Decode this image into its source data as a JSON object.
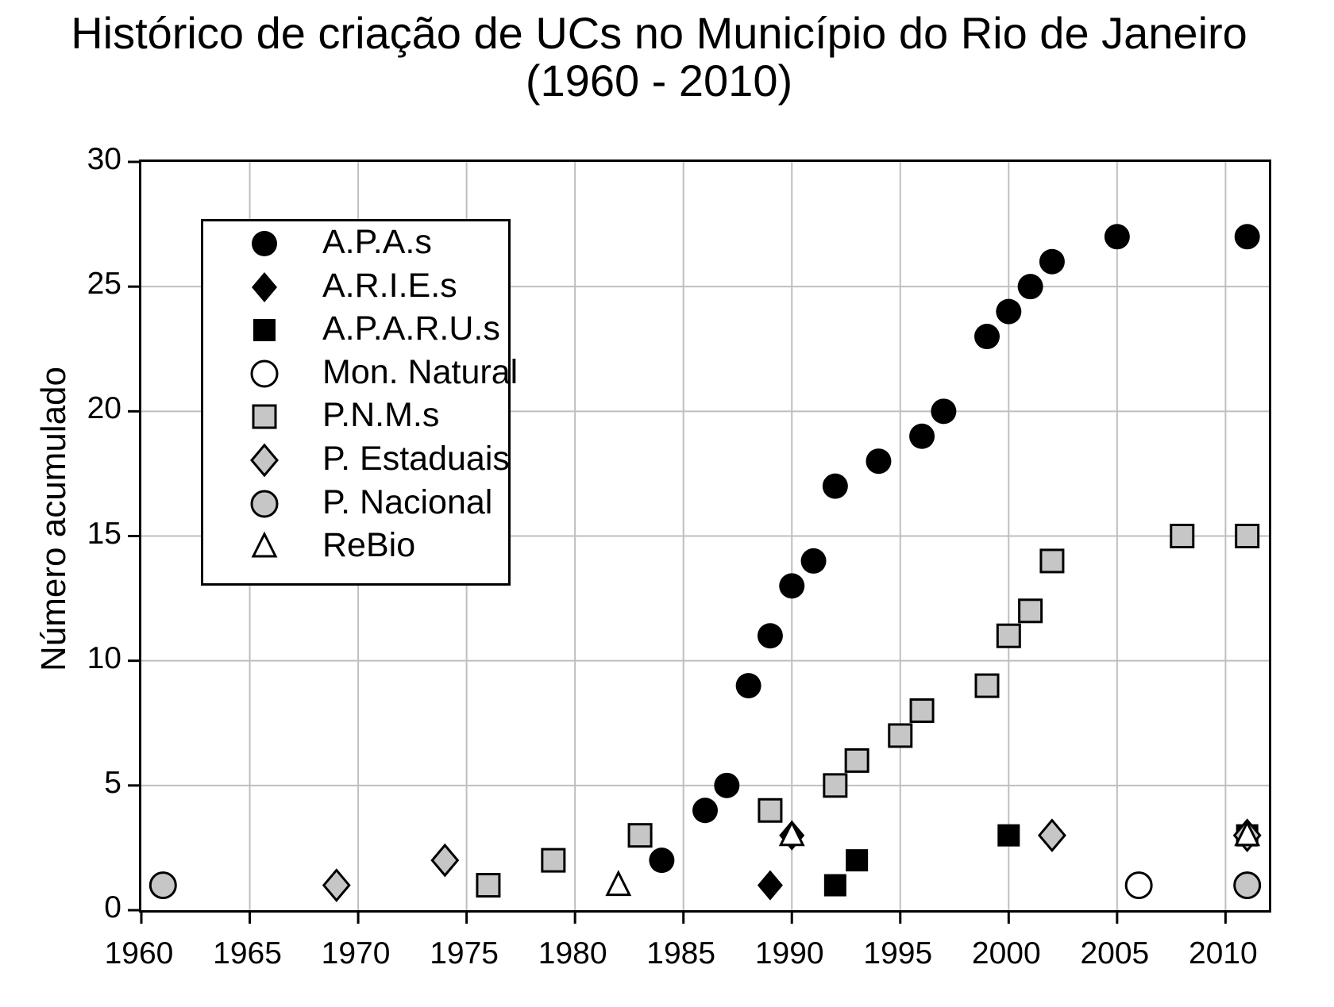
{
  "title": {
    "line1": "Histórico de criação de UCs no Município do Rio de Janeiro",
    "line2": "(1960 - 2010)"
  },
  "colors": {
    "black": "#000000",
    "gray_fill": "#c6c6c6",
    "white": "#ffffff",
    "gridline": "#bfbfbf",
    "frame": "#000000",
    "background": "#ffffff"
  },
  "chart_data": {
    "type": "scatter",
    "title": "Histórico de criação de UCs no Município do Rio de Janeiro",
    "subtitle": "(1960 - 2010)",
    "xlabel": "",
    "ylabel": "Número acumulado",
    "xlim": [
      1960,
      2012
    ],
    "ylim": [
      0,
      30
    ],
    "x_ticks": [
      1960,
      1965,
      1970,
      1975,
      1980,
      1985,
      1990,
      1995,
      2000,
      2005,
      2010
    ],
    "y_ticks": [
      0,
      5,
      10,
      15,
      20,
      25,
      30
    ],
    "grid": true,
    "legend_position": "upper-left-inside",
    "series": [
      {
        "name": "A.P.A.s",
        "marker": {
          "shape": "circle",
          "fill": "#000000",
          "stroke": "none"
        },
        "points": [
          [
            1984,
            2
          ],
          [
            1986,
            4
          ],
          [
            1987,
            5
          ],
          [
            1988,
            9
          ],
          [
            1989,
            11
          ],
          [
            1990,
            13
          ],
          [
            1991,
            14
          ],
          [
            1992,
            17
          ],
          [
            1994,
            18
          ],
          [
            1996,
            19
          ],
          [
            1997,
            20
          ],
          [
            1999,
            23
          ],
          [
            2000,
            24
          ],
          [
            2001,
            25
          ],
          [
            2002,
            26
          ],
          [
            2005,
            27
          ],
          [
            2011,
            27
          ]
        ]
      },
      {
        "name": "A.R.I.E.s",
        "marker": {
          "shape": "diamond",
          "fill": "#000000",
          "stroke": "none"
        },
        "points": [
          [
            1989,
            1
          ],
          [
            1990,
            3
          ],
          [
            2011,
            3
          ]
        ]
      },
      {
        "name": "A.P.A.R.U.s",
        "marker": {
          "shape": "square",
          "fill": "#000000",
          "stroke": "none"
        },
        "points": [
          [
            1992,
            1
          ],
          [
            1993,
            2
          ],
          [
            2000,
            3
          ],
          [
            2011,
            3
          ]
        ]
      },
      {
        "name": "Mon. Natural",
        "marker": {
          "shape": "circle",
          "fill": "#ffffff",
          "stroke": "#000000"
        },
        "points": [
          [
            2006,
            1
          ]
        ]
      },
      {
        "name": "P.N.M.s",
        "marker": {
          "shape": "square",
          "fill": "#c6c6c6",
          "stroke": "#000000"
        },
        "points": [
          [
            1976,
            1
          ],
          [
            1979,
            2
          ],
          [
            1983,
            3
          ],
          [
            1989,
            4
          ],
          [
            1992,
            5
          ],
          [
            1993,
            6
          ],
          [
            1995,
            7
          ],
          [
            1996,
            8
          ],
          [
            1999,
            9
          ],
          [
            2000,
            11
          ],
          [
            2001,
            12
          ],
          [
            2002,
            14
          ],
          [
            2008,
            15
          ],
          [
            2011,
            15
          ]
        ]
      },
      {
        "name": "P. Estaduais",
        "marker": {
          "shape": "diamond",
          "fill": "#c6c6c6",
          "stroke": "#000000"
        },
        "points": [
          [
            1969,
            1
          ],
          [
            1974,
            2
          ],
          [
            2002,
            3
          ],
          [
            2011,
            3
          ]
        ]
      },
      {
        "name": "P. Nacional",
        "marker": {
          "shape": "circle",
          "fill": "#c6c6c6",
          "stroke": "#000000"
        },
        "points": [
          [
            1961,
            1
          ],
          [
            2011,
            1
          ]
        ]
      },
      {
        "name": "ReBio",
        "marker": {
          "shape": "triangle",
          "fill": "#ffffff",
          "stroke": "#000000"
        },
        "points": [
          [
            1982,
            1
          ],
          [
            1990,
            3
          ],
          [
            2011,
            3
          ]
        ]
      }
    ]
  }
}
